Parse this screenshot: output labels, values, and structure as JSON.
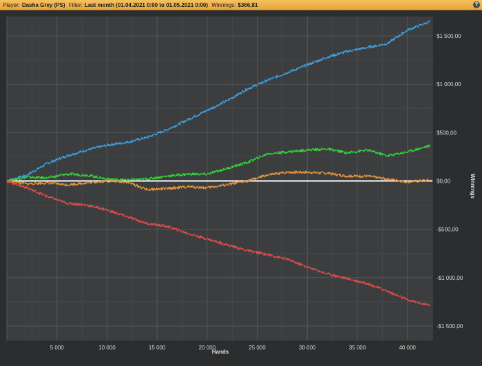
{
  "header": {
    "player_label": "Player:",
    "player_value": "Dasha Grey (PS)",
    "filter_label": "Filter:",
    "filter_value": "Last month (01.04.2021 0:00 to 01.05.2021 0:00)",
    "winnings_label": "Winnings:",
    "winnings_value": "$366,81",
    "help_glyph": "?"
  },
  "chart_data": {
    "type": "line",
    "xlabel": "Hands",
    "ylabel": "Winnings",
    "xlim": [
      0,
      42500
    ],
    "ylim": [
      -1650,
      1700
    ],
    "x_ticks": [
      5000,
      10000,
      15000,
      20000,
      25000,
      30000,
      35000,
      40000
    ],
    "x_tick_labels": [
      "5 000",
      "10 000",
      "15 000",
      "20 000",
      "25 000",
      "30 000",
      "35 000",
      "40 000"
    ],
    "y_ticks": [
      1500,
      1000,
      500,
      0,
      -500,
      -1000,
      -1500
    ],
    "y_tick_labels": [
      "$1 500,00",
      "$1 000,00",
      "$500,00",
      "$0,00",
      "-$500,00",
      "-$1 000,00",
      "-$1 500,00"
    ],
    "grid": true,
    "zero_line": true,
    "series": [
      {
        "color": "#3f9fe0",
        "x": [
          0,
          2000,
          4000,
          6000,
          8000,
          10000,
          12000,
          14000,
          16000,
          18000,
          20000,
          22000,
          24000,
          26000,
          28000,
          30000,
          32000,
          34000,
          36000,
          38000,
          40000,
          42300
        ],
        "y": [
          0,
          60,
          180,
          260,
          320,
          370,
          400,
          450,
          530,
          630,
          730,
          830,
          950,
          1040,
          1120,
          1200,
          1280,
          1340,
          1380,
          1420,
          1560,
          1650
        ]
      },
      {
        "color": "#37d23c",
        "x": [
          0,
          2000,
          4000,
          6000,
          8000,
          10000,
          12000,
          14000,
          16000,
          18000,
          20000,
          22000,
          24000,
          26000,
          28000,
          30000,
          32000,
          34000,
          36000,
          38000,
          40000,
          42300
        ],
        "y": [
          0,
          40,
          30,
          70,
          60,
          20,
          10,
          20,
          50,
          70,
          70,
          130,
          190,
          280,
          300,
          320,
          330,
          290,
          320,
          260,
          300,
          367
        ]
      },
      {
        "color": "#e8963c",
        "x": [
          0,
          2000,
          4000,
          6000,
          8000,
          10000,
          12000,
          14000,
          16000,
          18000,
          20000,
          22000,
          24000,
          26000,
          28000,
          30000,
          32000,
          34000,
          36000,
          38000,
          40000,
          42300
        ],
        "y": [
          0,
          -30,
          -20,
          -40,
          -20,
          0,
          -10,
          -90,
          -80,
          -60,
          -70,
          -40,
          0,
          60,
          90,
          90,
          80,
          50,
          50,
          20,
          -10,
          10
        ]
      },
      {
        "color": "#e04c4c",
        "x": [
          0,
          2000,
          4000,
          6000,
          8000,
          10000,
          12000,
          14000,
          16000,
          18000,
          20000,
          22000,
          24000,
          26000,
          28000,
          30000,
          32000,
          34000,
          36000,
          38000,
          40000,
          42300
        ],
        "y": [
          0,
          -70,
          -160,
          -230,
          -250,
          -300,
          -370,
          -440,
          -470,
          -540,
          -600,
          -660,
          -720,
          -760,
          -810,
          -890,
          -960,
          -1010,
          -1060,
          -1140,
          -1230,
          -1290
        ]
      }
    ]
  }
}
